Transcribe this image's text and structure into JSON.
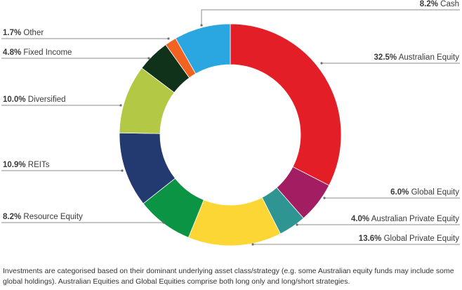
{
  "chart_data": {
    "type": "pie",
    "donut": true,
    "title": "",
    "slices": [
      {
        "label": "Australian Equity",
        "value": 32.5,
        "display": "32.5%",
        "color": "#e31e26"
      },
      {
        "label": "Global Equity",
        "value": 6.0,
        "display": "6.0%",
        "color": "#a21d62"
      },
      {
        "label": "Australian Private Equity",
        "value": 4.0,
        "display": "4.0%",
        "color": "#2e9593"
      },
      {
        "label": "Global Private Equity",
        "value": 13.6,
        "display": "13.6%",
        "color": "#fcd634"
      },
      {
        "label": "Resource Equity",
        "value": 8.2,
        "display": "8.2%",
        "color": "#0a9444"
      },
      {
        "label": "REITs",
        "value": 10.9,
        "display": "10.9%",
        "color": "#233a71"
      },
      {
        "label": "Diversified",
        "value": 10.0,
        "display": "10.0%",
        "color": "#b3c845"
      },
      {
        "label": "Fixed Income",
        "value": 4.8,
        "display": "4.8%",
        "color": "#10321b"
      },
      {
        "label": "Other",
        "value": 1.7,
        "display": "1.7%",
        "color": "#f26322"
      },
      {
        "label": "Cash",
        "value": 8.2,
        "display": "8.2%",
        "color": "#2aa7e0"
      }
    ],
    "legend": "leader-line labels around chart"
  },
  "footnote": "Investments are categorised based on their dominant underlying asset class/strategy (e.g. some Australian equity funds may include some global holdings). Australian Equities and Global Equities comprise both long only and long/short strategies."
}
